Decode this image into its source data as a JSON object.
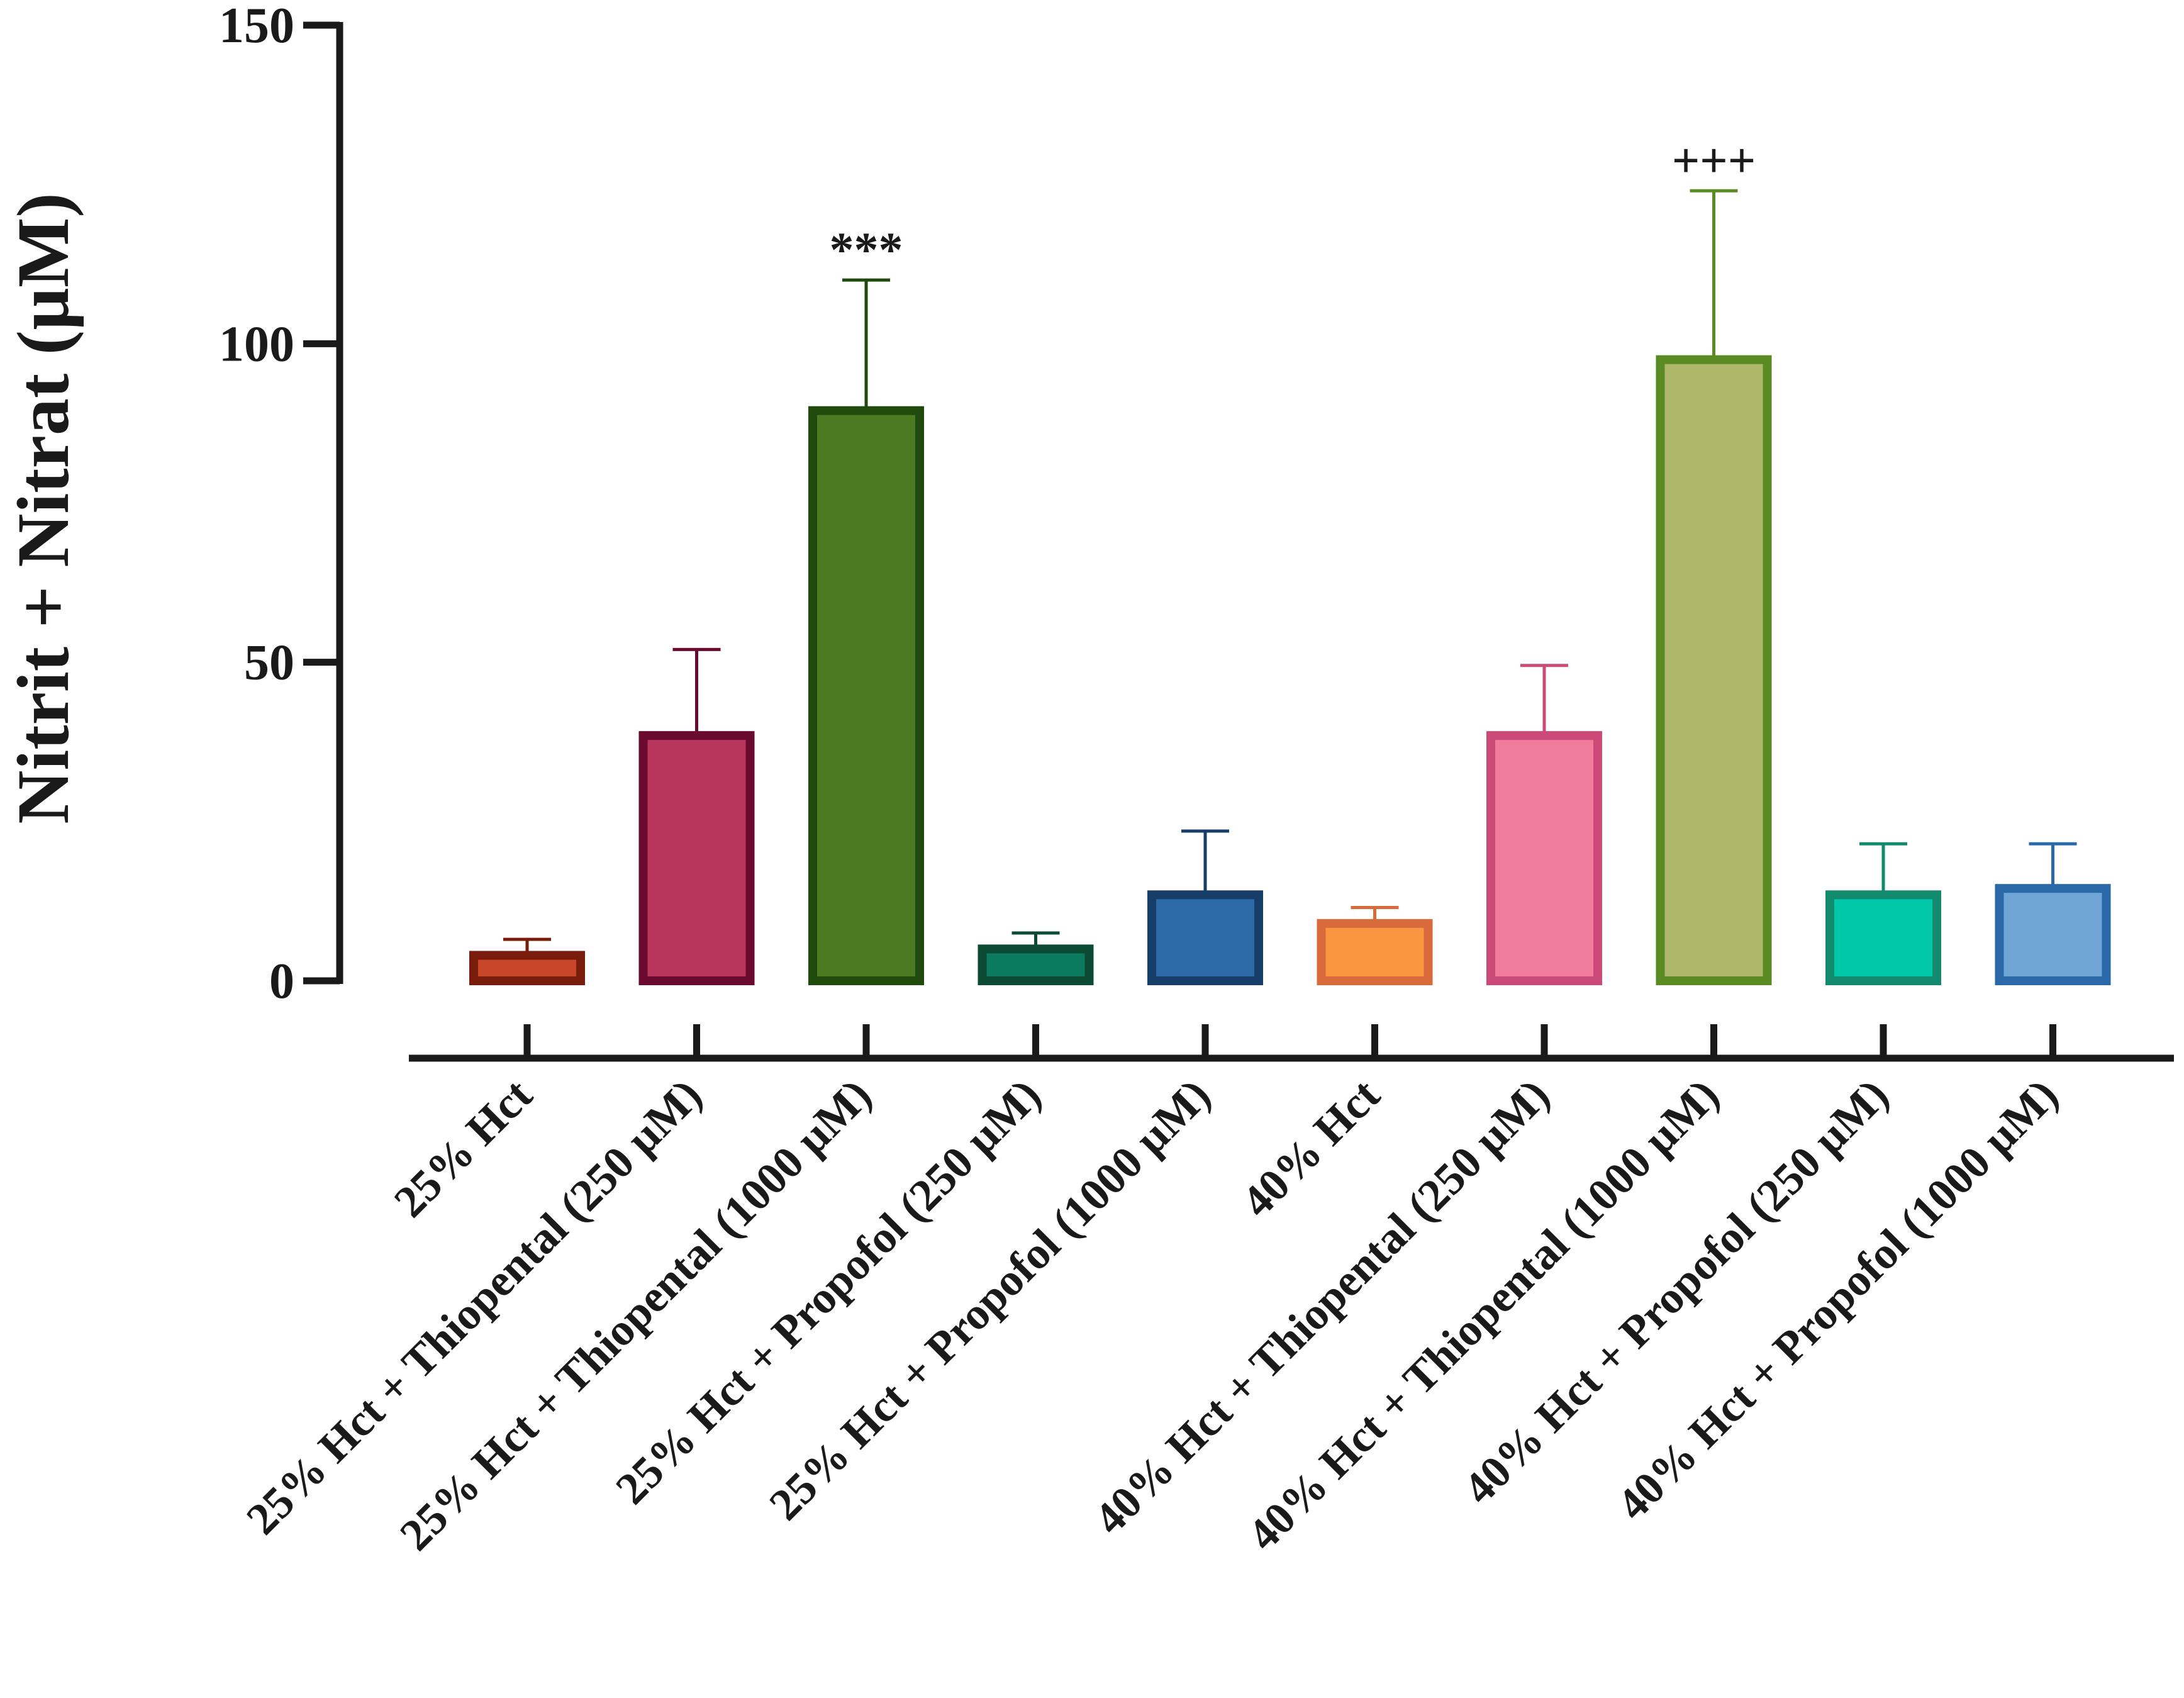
{
  "chart_data": {
    "type": "bar",
    "title": "",
    "xlabel": "",
    "ylabel": "Nitrit + Nitrat (µM)",
    "ylim": [
      0,
      150
    ],
    "yticks": [
      0,
      50,
      100,
      150
    ],
    "grid": false,
    "legend": "none",
    "categories": [
      "25% Hct",
      "25% Hct + Thiopental (250 µM)",
      "25% Hct + Thiopental (1000 µM)",
      "25% Hct + Propofol (250 µM)",
      "25% Hct + Propofol (1000 µM)",
      "40% Hct",
      "40% Hct + Thiopental (250 µM)",
      "40% Hct + Thiopental (1000 µM)",
      "40% Hct + Propofol (250 µM)",
      "40% Hct + Propofol (1000 µM)"
    ],
    "values": [
      4,
      38.5,
      89.5,
      5,
      13.5,
      9,
      38.5,
      97.5,
      13.5,
      14.5
    ],
    "errors": [
      2.5,
      13.5,
      20.5,
      2.5,
      10,
      2.5,
      11,
      26.5,
      8,
      7
    ],
    "fill_colors": [
      "#c8472a",
      "#b8365c",
      "#4a7a22",
      "#0b7a5e",
      "#2e6aa8",
      "#fb9640",
      "#f07b9c",
      "#afb86a",
      "#00c8a8",
      "#6fa6d6"
    ],
    "edge_colors": [
      "#7a1c0c",
      "#6a0a2e",
      "#1f4a0c",
      "#0c4a34",
      "#163e68",
      "#d86a3c",
      "#cc4a78",
      "#5a8a22",
      "#118a6e",
      "#2a68a8"
    ],
    "annotations": [
      {
        "category_index": 2,
        "text": "***"
      },
      {
        "category_index": 7,
        "text": "+++"
      }
    ]
  }
}
